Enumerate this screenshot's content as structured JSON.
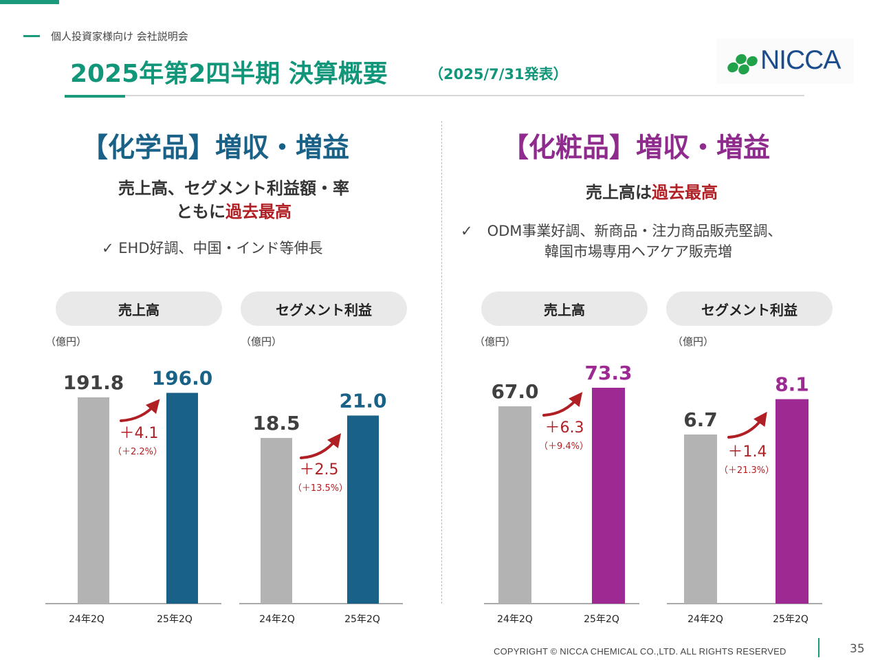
{
  "header": {
    "kicker": "個人投資家様向け 会社説明会",
    "title": "2025年第2四半期 決算概要",
    "date": "（2025/7/31発表）",
    "logo": "NICCA"
  },
  "chemicals": {
    "heading": "【化学品】増収・増益",
    "line1": "売上高、セグメント利益額・率",
    "line2_prefix": "ともに",
    "line2_highlight": "過去最高",
    "note": "✓ EHD好調、中国・インド等伸長"
  },
  "cosmetics": {
    "heading": "【化粧品】増収・増益",
    "line1_prefix": "売上高は",
    "line1_highlight": "過去最高",
    "note1": "✓　ODM事業好調、新商品・注力商品販売堅調、",
    "note2": "韓国市場専用ヘアケア販売増"
  },
  "labels": {
    "sales": "売上高",
    "segment_profit": "セグメント利益",
    "unit": "（億円）"
  },
  "colors": {
    "prev": "#b3b3b3",
    "chem": "#1a6187",
    "cosm": "#9c2a92",
    "delta": "#b01f24",
    "value_prev": "#404040"
  },
  "chart_data": [
    {
      "type": "bar",
      "title": "売上高",
      "ylabel": "（億円）",
      "categories": [
        "24年2Q",
        "25年2Q"
      ],
      "values": [
        191.8,
        196.0
      ],
      "delta": "＋4.1",
      "delta_pct": "（＋2.2%）"
    },
    {
      "type": "bar",
      "title": "セグメント利益",
      "ylabel": "（億円）",
      "categories": [
        "24年2Q",
        "25年2Q"
      ],
      "values": [
        18.5,
        21.0
      ],
      "delta": "＋2.5",
      "delta_pct": "（＋13.5%）"
    },
    {
      "type": "bar",
      "title": "売上高",
      "ylabel": "（億円）",
      "categories": [
        "24年2Q",
        "25年2Q"
      ],
      "values": [
        67.0,
        73.3
      ],
      "delta": "＋6.3",
      "delta_pct": "（＋9.4%）"
    },
    {
      "type": "bar",
      "title": "セグメント利益",
      "ylabel": "（億円）",
      "categories": [
        "24年2Q",
        "25年2Q"
      ],
      "values": [
        6.7,
        8.1
      ],
      "delta": "＋1.4",
      "delta_pct": "（＋21.3%）"
    }
  ],
  "footer": {
    "copyright": "COPYRIGHT © NICCA CHEMICAL CO.,LTD. ALL RIGHTS RESERVED",
    "page": "35"
  }
}
